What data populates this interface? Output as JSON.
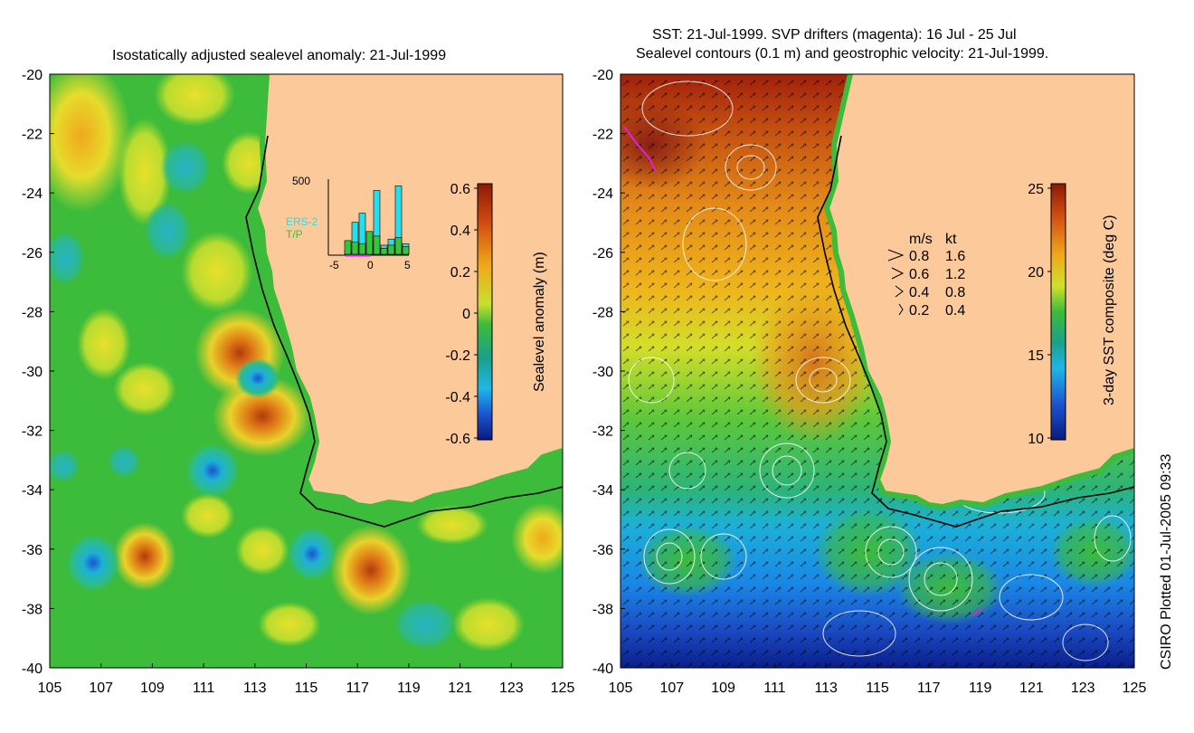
{
  "left_panel": {
    "title": "Isostatically adjusted sealevel anomaly: 21-Jul-1999",
    "colorbar_label": "Sealevel anomaly (m)",
    "colorbar_ticks": [
      "0.6",
      "0.4",
      "0.2",
      "0",
      "-0.2",
      "-0.4",
      "-0.6"
    ],
    "colors": {
      "ocean": "#3dbb3a",
      "land": "#fbc99a",
      "high": "#b33a0d",
      "low": "#0a2f99"
    }
  },
  "right_panel": {
    "title_line1": "SST: 21-Jul-1999. SVP drifters (magenta): 16 Jul - 25 Jul",
    "title_line2": "Sealevel contours (0.1 m) and geostrophic velocity: 21-Jul-1999.",
    "colorbar_label": "3-day SST composite (deg C)",
    "colorbar_ticks": [
      "25",
      "20",
      "15",
      "10"
    ],
    "speed_legend": {
      "header_ms": "m/s",
      "header_kt": "kt",
      "rows": [
        {
          "ms": "0.8",
          "kt": "1.6"
        },
        {
          "ms": "0.6",
          "kt": "1.2"
        },
        {
          "ms": "0.4",
          "kt": "0.8"
        },
        {
          "ms": "0.2",
          "kt": "0.4"
        }
      ]
    }
  },
  "latitude_ticks": [
    "-20",
    "-22",
    "-24",
    "-26",
    "-28",
    "-30",
    "-32",
    "-34",
    "-36",
    "-38",
    "-40"
  ],
  "longitude_ticks": [
    "105",
    "107",
    "109",
    "111",
    "113",
    "115",
    "117",
    "119",
    "121",
    "123",
    "125"
  ],
  "inset_histogram": {
    "ymax_label": "500",
    "x_ticks": [
      "-5",
      "0",
      "5"
    ],
    "series": [
      {
        "name": "ERS-2",
        "color": "#22e0f0",
        "values": [
          0,
          0,
          20,
          210,
          270,
          80,
          420,
          60,
          100,
          450,
          70
        ]
      },
      {
        "name": "T/P",
        "color": "#33c83a",
        "values": [
          0,
          0,
          90,
          80,
          70,
          150,
          120,
          40,
          60,
          110,
          50
        ]
      }
    ]
  },
  "footer": "CSIRO Plotted 01-Jul-2005 09:33"
}
